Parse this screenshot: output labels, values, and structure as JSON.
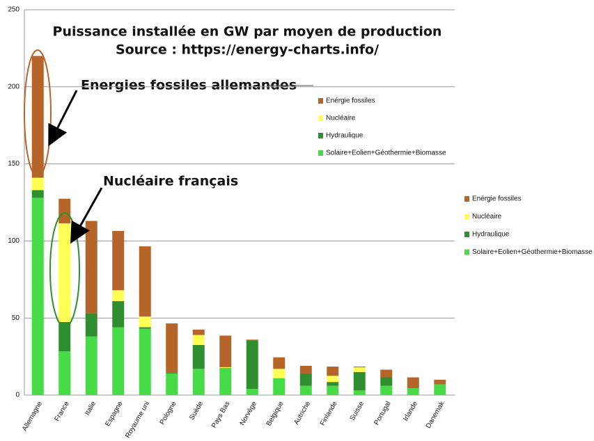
{
  "chart_data": {
    "type": "stacked_bar",
    "title": "Puissance installée en GW  par moyen de production",
    "subtitle": "Source : https://energy-charts.info/",
    "annotations": [
      "Energies fossiles allemandes",
      "Nucléaire français"
    ],
    "categories": [
      "Allemagne",
      "France",
      "Italie",
      "Espagne",
      "Royaume uni",
      "Pologne",
      "Suède",
      "Pays Bas",
      "Norvège",
      "Belgique",
      "Autriche",
      "Finlande",
      "Suisse",
      "Portugal",
      "Irlande",
      "Danemak"
    ],
    "series": [
      {
        "name": "Solaire+Eolien+Géothermie+Biomasse",
        "color": "#47dc47",
        "values": [
          128,
          28.4,
          38,
          44,
          43,
          14,
          17,
          17.6,
          4,
          11,
          6,
          6,
          3,
          6,
          4.5,
          7
        ]
      },
      {
        "name": "Hydraulique",
        "color": "#2f8f2f",
        "values": [
          5,
          19,
          15,
          17,
          1,
          0.5,
          15.5,
          0,
          31.5,
          0,
          8,
          2.5,
          12,
          5.5,
          0,
          0
        ]
      },
      {
        "name": "Nucléaire",
        "color": "#ffff55",
        "values": [
          8,
          64,
          0,
          7,
          7,
          0,
          6.5,
          0.5,
          0,
          6,
          0,
          4,
          3,
          0,
          0,
          0
        ]
      },
      {
        "name": "Energie fossiles",
        "color": "#b5642a",
        "values": [
          79,
          16,
          60,
          38.5,
          45.5,
          32,
          3.5,
          20.5,
          0.5,
          7.5,
          5,
          6,
          0.5,
          5,
          7,
          3
        ]
      }
    ],
    "legend_names": [
      "Enérgie fossiles",
      "Nucléaire",
      "Hydraulique",
      "Solaire+Eolien+Géothermie+Biomasse"
    ],
    "ylim": [
      0,
      250
    ],
    "yticks": [
      0,
      50,
      100,
      150,
      200,
      250
    ],
    "grid": true
  }
}
